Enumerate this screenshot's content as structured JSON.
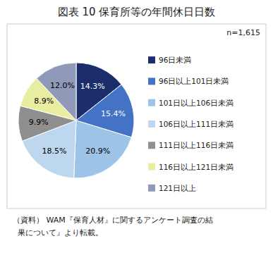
{
  "chart_data": {
    "type": "pie",
    "title": "図表 10   保育所等の年間休日日数",
    "categories": [
      "96日未満",
      "96日以上101日未満",
      "101日以上106日未満",
      "106日以上111日未満",
      "111日以上116日未満",
      "116日以上121日未満",
      "121日以上"
    ],
    "values": [
      14.3,
      15.4,
      20.9,
      18.5,
      9.9,
      8.9,
      12.0
    ],
    "value_labels": [
      "14.3%",
      "15.4%",
      "20.9%",
      "18.5%",
      "9.9%",
      "8.9%",
      "12.0%"
    ],
    "colors": [
      "#1c2d6b",
      "#4472c4",
      "#9dc3e6",
      "#bdd7ee",
      "#8f8f8f",
      "#e9eda0",
      "#9099b8"
    ],
    "data_labels": true,
    "legend": "right",
    "annotations": [
      "n=1,615",
      "（資料） WAM『保育人材』に関するアンケート調査の結",
      "  果について』より転載。"
    ]
  }
}
